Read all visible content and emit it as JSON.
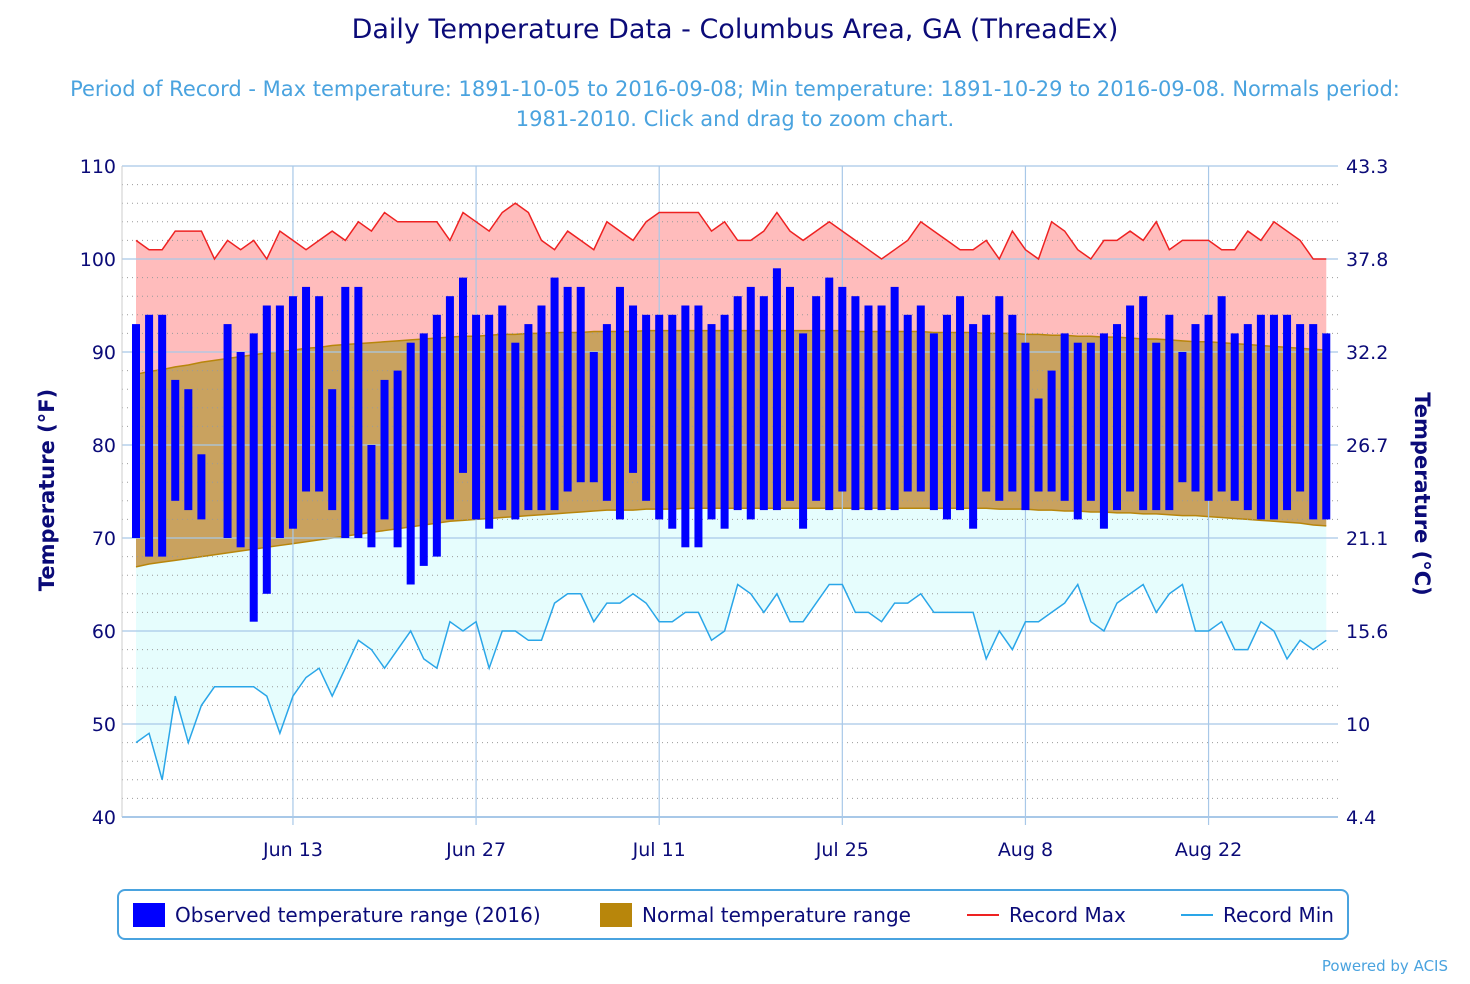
{
  "title": "Daily Temperature Data - Columbus Area, GA (ThreadEx)",
  "subtitle": "Period of Record - Max temperature: 1891-10-05 to 2016-09-08; Min temperature: 1891-10-29 to 2016-09-08. Normals period: 1981-2010. Click and drag to zoom chart.",
  "credits": "Powered by ACIS",
  "colors": {
    "observed": "#0000ff",
    "normal_fill": "#c9a25f",
    "normal_line": "#b8860b",
    "record_max_line": "#ee2222",
    "record_max_fill": "#ffbcbc",
    "record_min_line": "#2aa6e8",
    "record_min_fill": "#e6fdfd",
    "axis_text": "#0b0b78",
    "grid": "#a8c8e8"
  },
  "chart_data": {
    "type": "bar",
    "title": "Daily Temperature Data - Columbus Area, GA (ThreadEx)",
    "ylabel_left": "Temperature (°F)",
    "ylabel_right": "Temperature (°C)",
    "ylim": [
      40,
      110
    ],
    "y_ticks_left": [
      "40",
      "50",
      "60",
      "70",
      "80",
      "90",
      "100",
      "110"
    ],
    "y_ticks_right": [
      "4.4",
      "10",
      "15.6",
      "21.1",
      "26.7",
      "32.2",
      "37.8",
      "43.3"
    ],
    "x_ticks": [
      "Jun 13",
      "Jun 27",
      "Jul 11",
      "Jul 25",
      "Aug 8",
      "Aug 22"
    ],
    "x_dates": [
      "2016-06-01",
      "2016-06-02",
      "2016-06-03",
      "2016-06-04",
      "2016-06-05",
      "2016-06-06",
      "2016-06-07",
      "2016-06-08",
      "2016-06-09",
      "2016-06-10",
      "2016-06-11",
      "2016-06-12",
      "2016-06-13",
      "2016-06-14",
      "2016-06-15",
      "2016-06-16",
      "2016-06-17",
      "2016-06-18",
      "2016-06-19",
      "2016-06-20",
      "2016-06-21",
      "2016-06-22",
      "2016-06-23",
      "2016-06-24",
      "2016-06-25",
      "2016-06-26",
      "2016-06-27",
      "2016-06-28",
      "2016-06-29",
      "2016-06-30",
      "2016-07-01",
      "2016-07-02",
      "2016-07-03",
      "2016-07-04",
      "2016-07-05",
      "2016-07-06",
      "2016-07-07",
      "2016-07-08",
      "2016-07-09",
      "2016-07-10",
      "2016-07-11",
      "2016-07-12",
      "2016-07-13",
      "2016-07-14",
      "2016-07-15",
      "2016-07-16",
      "2016-07-17",
      "2016-07-18",
      "2016-07-19",
      "2016-07-20",
      "2016-07-21",
      "2016-07-22",
      "2016-07-23",
      "2016-07-24",
      "2016-07-25",
      "2016-07-26",
      "2016-07-27",
      "2016-07-28",
      "2016-07-29",
      "2016-07-30",
      "2016-07-31",
      "2016-08-01",
      "2016-08-02",
      "2016-08-03",
      "2016-08-04",
      "2016-08-05",
      "2016-08-06",
      "2016-08-07",
      "2016-08-08",
      "2016-08-09",
      "2016-08-10",
      "2016-08-11",
      "2016-08-12",
      "2016-08-13",
      "2016-08-14",
      "2016-08-15",
      "2016-08-16",
      "2016-08-17",
      "2016-08-18",
      "2016-08-19",
      "2016-08-20",
      "2016-08-21",
      "2016-08-22",
      "2016-08-23",
      "2016-08-24",
      "2016-08-25",
      "2016-08-26",
      "2016-08-27",
      "2016-08-28",
      "2016-08-29",
      "2016-08-30",
      "2016-08-31"
    ],
    "series": [
      {
        "name": "Observed temperature range (2016)",
        "high": [
          93,
          94,
          94,
          87,
          86,
          79,
          72,
          93,
          90,
          92,
          95,
          95,
          96,
          97,
          96,
          86,
          97,
          97,
          80,
          87,
          88,
          91,
          92,
          94,
          96,
          98,
          94,
          94,
          95,
          91,
          93,
          95,
          98,
          97,
          97,
          90,
          93,
          97,
          95,
          94,
          94,
          94,
          95,
          95,
          93,
          94,
          96,
          97,
          96,
          99,
          97,
          92,
          96,
          98,
          97,
          96,
          95,
          95,
          97,
          94,
          95,
          92,
          94,
          96,
          93,
          94,
          96,
          94,
          91,
          85,
          88,
          92,
          91,
          91,
          92,
          93,
          95,
          96,
          91,
          94,
          90,
          93,
          94,
          96,
          92,
          93,
          94,
          94,
          94,
          93,
          93,
          92
        ],
        "low": [
          70,
          68,
          68,
          74,
          73,
          72,
          72,
          70,
          69,
          61,
          64,
          70,
          71,
          75,
          75,
          73,
          70,
          70,
          69,
          72,
          69,
          65,
          67,
          68,
          72,
          77,
          72,
          71,
          73,
          72,
          73,
          73,
          73,
          75,
          76,
          76,
          74,
          72,
          77,
          74,
          72,
          71,
          69,
          69,
          72,
          71,
          73,
          72,
          73,
          73,
          74,
          71,
          74,
          73,
          75,
          73,
          73,
          73,
          73,
          75,
          75,
          73,
          72,
          73,
          71,
          75,
          74,
          75,
          73,
          75,
          75,
          74,
          72,
          74,
          71,
          73,
          75,
          73,
          73,
          73,
          76,
          75,
          74,
          75,
          74,
          73,
          72,
          72,
          73,
          75,
          72,
          72
        ]
      },
      {
        "name": "Normal temperature range",
        "high": [
          87.6,
          87.9,
          88.1,
          88.4,
          88.6,
          88.9,
          89.1,
          89.3,
          89.5,
          89.7,
          89.9,
          90.0,
          90.2,
          90.4,
          90.5,
          90.7,
          90.8,
          90.9,
          91.0,
          91.1,
          91.2,
          91.3,
          91.4,
          91.5,
          91.6,
          91.7,
          91.7,
          91.8,
          91.9,
          91.9,
          92.0,
          92.0,
          92.1,
          92.1,
          92.1,
          92.2,
          92.2,
          92.2,
          92.2,
          92.3,
          92.3,
          92.3,
          92.3,
          92.3,
          92.3,
          92.3,
          92.3,
          92.3,
          92.3,
          92.3,
          92.3,
          92.3,
          92.3,
          92.3,
          92.3,
          92.2,
          92.2,
          92.2,
          92.2,
          92.2,
          92.2,
          92.1,
          92.1,
          92.1,
          92.1,
          92.0,
          92.0,
          92.0,
          91.9,
          91.9,
          91.8,
          91.8,
          91.7,
          91.7,
          91.6,
          91.6,
          91.5,
          91.4,
          91.4,
          91.3,
          91.2,
          91.1,
          91.1,
          91.0,
          90.9,
          90.8,
          90.7,
          90.6,
          90.5,
          90.4,
          90.3,
          90.2
        ],
        "low": [
          66.9,
          67.2,
          67.4,
          67.6,
          67.8,
          68.0,
          68.2,
          68.4,
          68.6,
          68.8,
          69.0,
          69.2,
          69.4,
          69.6,
          69.8,
          70.0,
          70.2,
          70.4,
          70.6,
          70.8,
          71.0,
          71.2,
          71.4,
          71.6,
          71.8,
          71.9,
          72.0,
          72.1,
          72.2,
          72.3,
          72.4,
          72.5,
          72.6,
          72.7,
          72.8,
          72.9,
          73.0,
          73.0,
          73.0,
          73.1,
          73.1,
          73.1,
          73.2,
          73.2,
          73.2,
          73.2,
          73.2,
          73.2,
          73.2,
          73.2,
          73.2,
          73.2,
          73.2,
          73.2,
          73.2,
          73.2,
          73.2,
          73.2,
          73.2,
          73.2,
          73.2,
          73.2,
          73.2,
          73.2,
          73.2,
          73.2,
          73.1,
          73.1,
          73.1,
          73.0,
          73.0,
          72.9,
          72.9,
          72.8,
          72.8,
          72.7,
          72.7,
          72.6,
          72.6,
          72.5,
          72.4,
          72.4,
          72.3,
          72.2,
          72.1,
          72.0,
          71.9,
          71.8,
          71.7,
          71.6,
          71.4,
          71.3
        ]
      },
      {
        "name": "Record Max",
        "values": [
          102,
          101,
          101,
          103,
          103,
          103,
          100,
          102,
          101,
          102,
          100,
          103,
          102,
          101,
          102,
          103,
          102,
          104,
          103,
          105,
          104,
          104,
          104,
          104,
          102,
          105,
          104,
          103,
          105,
          106,
          105,
          102,
          101,
          103,
          102,
          101,
          104,
          103,
          102,
          104,
          105,
          105,
          105,
          105,
          103,
          104,
          102,
          102,
          103,
          105,
          103,
          102,
          103,
          104,
          103,
          102,
          101,
          100,
          101,
          102,
          104,
          103,
          102,
          101,
          101,
          102,
          100,
          103,
          101,
          100,
          104,
          103,
          101,
          100,
          102,
          102,
          103,
          102,
          104,
          101,
          102,
          102,
          102,
          101,
          101,
          103,
          102,
          104,
          103,
          102,
          100,
          100
        ]
      },
      {
        "name": "Record Min",
        "values": [
          48,
          49,
          44,
          53,
          48,
          52,
          54,
          54,
          54,
          54,
          53,
          49,
          53,
          55,
          56,
          53,
          56,
          59,
          58,
          56,
          58,
          60,
          57,
          56,
          61,
          60,
          61,
          56,
          60,
          60,
          59,
          59,
          63,
          64,
          64,
          61,
          63,
          63,
          64,
          63,
          61,
          61,
          62,
          62,
          59,
          60,
          65,
          64,
          62,
          64,
          61,
          61,
          63,
          65,
          65,
          62,
          62,
          61,
          63,
          63,
          64,
          62,
          62,
          62,
          62,
          57,
          60,
          58,
          61,
          61,
          62,
          63,
          65,
          61,
          60,
          63,
          64,
          65,
          62,
          64,
          65,
          60,
          60,
          61,
          58,
          58,
          61,
          60,
          57,
          59,
          58,
          59
        ]
      }
    ],
    "legend": [
      "Observed temperature range (2016)",
      "Normal temperature range",
      "Record Max",
      "Record Min"
    ],
    "legend_position": "bottom",
    "grid": true
  }
}
